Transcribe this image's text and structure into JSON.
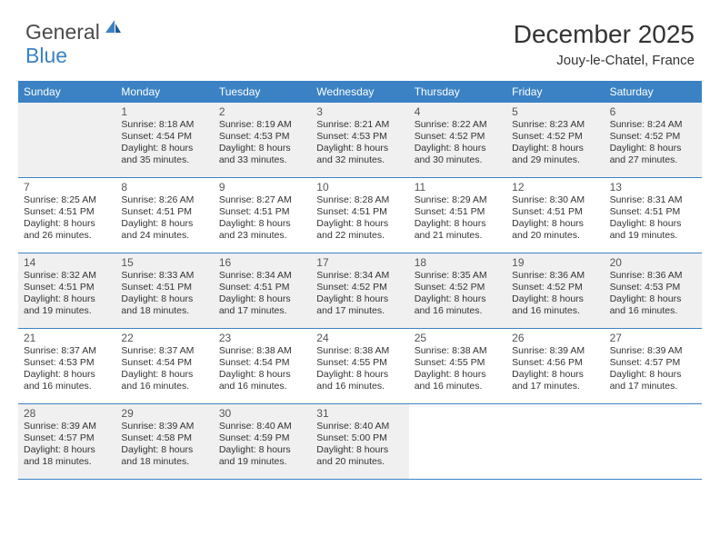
{
  "logo": {
    "general": "General",
    "blue": "Blue"
  },
  "header": {
    "month": "December 2025",
    "location": "Jouy-le-Chatel, France"
  },
  "dayNames": [
    "Sunday",
    "Monday",
    "Tuesday",
    "Wednesday",
    "Thursday",
    "Friday",
    "Saturday"
  ],
  "colors": {
    "headerBar": "#3b82c4",
    "shadedCell": "#f0f0f0",
    "text": "#333333",
    "logoGray": "#4a4a4a",
    "logoBlue": "#3b82c4"
  },
  "weeks": [
    [
      {
        "blank": true,
        "shaded": true
      },
      {
        "n": "1",
        "shaded": true,
        "sunrise": "Sunrise: 8:18 AM",
        "sunset": "Sunset: 4:54 PM",
        "daylight1": "Daylight: 8 hours",
        "daylight2": "and 35 minutes."
      },
      {
        "n": "2",
        "shaded": true,
        "sunrise": "Sunrise: 8:19 AM",
        "sunset": "Sunset: 4:53 PM",
        "daylight1": "Daylight: 8 hours",
        "daylight2": "and 33 minutes."
      },
      {
        "n": "3",
        "shaded": true,
        "sunrise": "Sunrise: 8:21 AM",
        "sunset": "Sunset: 4:53 PM",
        "daylight1": "Daylight: 8 hours",
        "daylight2": "and 32 minutes."
      },
      {
        "n": "4",
        "shaded": true,
        "sunrise": "Sunrise: 8:22 AM",
        "sunset": "Sunset: 4:52 PM",
        "daylight1": "Daylight: 8 hours",
        "daylight2": "and 30 minutes."
      },
      {
        "n": "5",
        "shaded": true,
        "sunrise": "Sunrise: 8:23 AM",
        "sunset": "Sunset: 4:52 PM",
        "daylight1": "Daylight: 8 hours",
        "daylight2": "and 29 minutes."
      },
      {
        "n": "6",
        "shaded": true,
        "sunrise": "Sunrise: 8:24 AM",
        "sunset": "Sunset: 4:52 PM",
        "daylight1": "Daylight: 8 hours",
        "daylight2": "and 27 minutes."
      }
    ],
    [
      {
        "n": "7",
        "sunrise": "Sunrise: 8:25 AM",
        "sunset": "Sunset: 4:51 PM",
        "daylight1": "Daylight: 8 hours",
        "daylight2": "and 26 minutes."
      },
      {
        "n": "8",
        "sunrise": "Sunrise: 8:26 AM",
        "sunset": "Sunset: 4:51 PM",
        "daylight1": "Daylight: 8 hours",
        "daylight2": "and 24 minutes."
      },
      {
        "n": "9",
        "sunrise": "Sunrise: 8:27 AM",
        "sunset": "Sunset: 4:51 PM",
        "daylight1": "Daylight: 8 hours",
        "daylight2": "and 23 minutes."
      },
      {
        "n": "10",
        "sunrise": "Sunrise: 8:28 AM",
        "sunset": "Sunset: 4:51 PM",
        "daylight1": "Daylight: 8 hours",
        "daylight2": "and 22 minutes."
      },
      {
        "n": "11",
        "sunrise": "Sunrise: 8:29 AM",
        "sunset": "Sunset: 4:51 PM",
        "daylight1": "Daylight: 8 hours",
        "daylight2": "and 21 minutes."
      },
      {
        "n": "12",
        "sunrise": "Sunrise: 8:30 AM",
        "sunset": "Sunset: 4:51 PM",
        "daylight1": "Daylight: 8 hours",
        "daylight2": "and 20 minutes."
      },
      {
        "n": "13",
        "sunrise": "Sunrise: 8:31 AM",
        "sunset": "Sunset: 4:51 PM",
        "daylight1": "Daylight: 8 hours",
        "daylight2": "and 19 minutes."
      }
    ],
    [
      {
        "n": "14",
        "shaded": true,
        "sunrise": "Sunrise: 8:32 AM",
        "sunset": "Sunset: 4:51 PM",
        "daylight1": "Daylight: 8 hours",
        "daylight2": "and 19 minutes."
      },
      {
        "n": "15",
        "shaded": true,
        "sunrise": "Sunrise: 8:33 AM",
        "sunset": "Sunset: 4:51 PM",
        "daylight1": "Daylight: 8 hours",
        "daylight2": "and 18 minutes."
      },
      {
        "n": "16",
        "shaded": true,
        "sunrise": "Sunrise: 8:34 AM",
        "sunset": "Sunset: 4:51 PM",
        "daylight1": "Daylight: 8 hours",
        "daylight2": "and 17 minutes."
      },
      {
        "n": "17",
        "shaded": true,
        "sunrise": "Sunrise: 8:34 AM",
        "sunset": "Sunset: 4:52 PM",
        "daylight1": "Daylight: 8 hours",
        "daylight2": "and 17 minutes."
      },
      {
        "n": "18",
        "shaded": true,
        "sunrise": "Sunrise: 8:35 AM",
        "sunset": "Sunset: 4:52 PM",
        "daylight1": "Daylight: 8 hours",
        "daylight2": "and 16 minutes."
      },
      {
        "n": "19",
        "shaded": true,
        "sunrise": "Sunrise: 8:36 AM",
        "sunset": "Sunset: 4:52 PM",
        "daylight1": "Daylight: 8 hours",
        "daylight2": "and 16 minutes."
      },
      {
        "n": "20",
        "shaded": true,
        "sunrise": "Sunrise: 8:36 AM",
        "sunset": "Sunset: 4:53 PM",
        "daylight1": "Daylight: 8 hours",
        "daylight2": "and 16 minutes."
      }
    ],
    [
      {
        "n": "21",
        "sunrise": "Sunrise: 8:37 AM",
        "sunset": "Sunset: 4:53 PM",
        "daylight1": "Daylight: 8 hours",
        "daylight2": "and 16 minutes."
      },
      {
        "n": "22",
        "sunrise": "Sunrise: 8:37 AM",
        "sunset": "Sunset: 4:54 PM",
        "daylight1": "Daylight: 8 hours",
        "daylight2": "and 16 minutes."
      },
      {
        "n": "23",
        "sunrise": "Sunrise: 8:38 AM",
        "sunset": "Sunset: 4:54 PM",
        "daylight1": "Daylight: 8 hours",
        "daylight2": "and 16 minutes."
      },
      {
        "n": "24",
        "sunrise": "Sunrise: 8:38 AM",
        "sunset": "Sunset: 4:55 PM",
        "daylight1": "Daylight: 8 hours",
        "daylight2": "and 16 minutes."
      },
      {
        "n": "25",
        "sunrise": "Sunrise: 8:38 AM",
        "sunset": "Sunset: 4:55 PM",
        "daylight1": "Daylight: 8 hours",
        "daylight2": "and 16 minutes."
      },
      {
        "n": "26",
        "sunrise": "Sunrise: 8:39 AM",
        "sunset": "Sunset: 4:56 PM",
        "daylight1": "Daylight: 8 hours",
        "daylight2": "and 17 minutes."
      },
      {
        "n": "27",
        "sunrise": "Sunrise: 8:39 AM",
        "sunset": "Sunset: 4:57 PM",
        "daylight1": "Daylight: 8 hours",
        "daylight2": "and 17 minutes."
      }
    ],
    [
      {
        "n": "28",
        "shaded": true,
        "sunrise": "Sunrise: 8:39 AM",
        "sunset": "Sunset: 4:57 PM",
        "daylight1": "Daylight: 8 hours",
        "daylight2": "and 18 minutes."
      },
      {
        "n": "29",
        "shaded": true,
        "sunrise": "Sunrise: 8:39 AM",
        "sunset": "Sunset: 4:58 PM",
        "daylight1": "Daylight: 8 hours",
        "daylight2": "and 18 minutes."
      },
      {
        "n": "30",
        "shaded": true,
        "sunrise": "Sunrise: 8:40 AM",
        "sunset": "Sunset: 4:59 PM",
        "daylight1": "Daylight: 8 hours",
        "daylight2": "and 19 minutes."
      },
      {
        "n": "31",
        "shaded": true,
        "sunrise": "Sunrise: 8:40 AM",
        "sunset": "Sunset: 5:00 PM",
        "daylight1": "Daylight: 8 hours",
        "daylight2": "and 20 minutes."
      },
      {
        "blank": true
      },
      {
        "blank": true
      },
      {
        "blank": true
      }
    ]
  ]
}
